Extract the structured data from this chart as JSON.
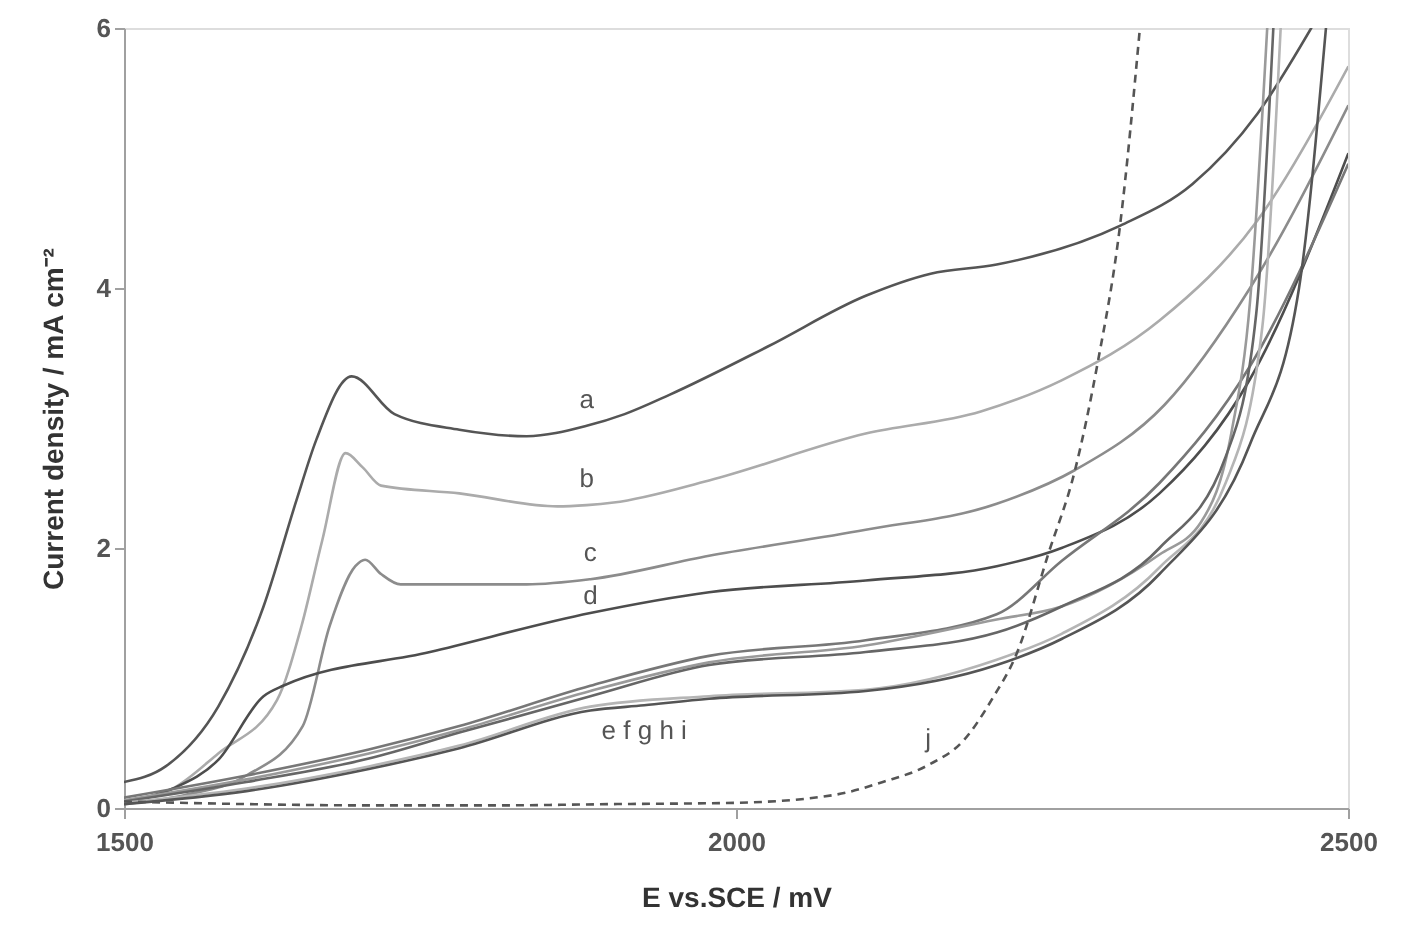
{
  "chart_data": {
    "type": "line",
    "xlabel": "E vs.SCE / mV",
    "ylabel": "Current density / mA cm⁻²",
    "xlim": [
      1500,
      2500
    ],
    "ylim": [
      0,
      6
    ],
    "xticks": [
      1500,
      2000,
      2500
    ],
    "yticks": [
      0,
      2,
      4,
      6
    ],
    "grid": false,
    "line_style": "solid",
    "series": [
      {
        "color": "#555555",
        "x": [
          1500,
          1534,
          1577,
          1614,
          1641,
          1657,
          1686,
          1721,
          1774,
          1829,
          1878,
          1909,
          1946,
          2026,
          2106,
          2159,
          2213,
          2314,
          2373,
          2426,
          2470
        ],
        "values": [
          0.2,
          0.32,
          0.78,
          1.55,
          2.37,
          2.83,
          3.32,
          3.03,
          2.91,
          2.86,
          2.94,
          3.03,
          3.18,
          3.55,
          3.94,
          4.11,
          4.18,
          4.48,
          4.8,
          5.34,
          6.0
        ]
      },
      {
        "color": "#ababab",
        "x": [
          1500,
          1540,
          1577,
          1625,
          1645,
          1662,
          1681,
          1695,
          1710,
          1774,
          1854,
          1878,
          1900,
          1978,
          2106,
          2200,
          2266,
          2346,
          2426,
          2500
        ],
        "values": [
          0.05,
          0.15,
          0.42,
          0.83,
          1.4,
          2.06,
          2.73,
          2.62,
          2.48,
          2.42,
          2.32,
          2.33,
          2.35,
          2.52,
          2.88,
          3.05,
          3.29,
          3.75,
          4.52,
          5.7
        ]
      },
      {
        "color": "#8c8c8c",
        "x": [
          1500,
          1550,
          1600,
          1646,
          1668,
          1689,
          1697,
          1710,
          1726,
          1829,
          1881,
          1978,
          2106,
          2213,
          2277,
          2350,
          2420,
          2500
        ],
        "values": [
          0.03,
          0.1,
          0.25,
          0.63,
          1.4,
          1.86,
          1.91,
          1.8,
          1.72,
          1.72,
          1.76,
          1.94,
          2.14,
          2.34,
          2.6,
          3.1,
          4.0,
          5.4
        ]
      },
      {
        "color": "#4d4d4d",
        "x": [
          1500,
          1540,
          1577,
          1614,
          1630,
          1750,
          1881,
          1978,
          2106,
          2213,
          2266,
          2346,
          2420,
          2500
        ],
        "values": [
          0.05,
          0.15,
          0.37,
          0.86,
          0.94,
          1.2,
          1.5,
          1.66,
          1.75,
          1.86,
          2.0,
          2.42,
          3.3,
          5.03
        ]
      },
      {
        "color": "#777777",
        "x": [
          1500,
          1600,
          1700,
          1774,
          1881,
          1978,
          2106,
          2213,
          2266,
          2346,
          2420,
          2500
        ],
        "values": [
          0.08,
          0.25,
          0.45,
          0.63,
          0.94,
          1.17,
          1.29,
          1.49,
          1.9,
          2.5,
          3.4,
          4.95
        ]
      },
      {
        "color": "#9a9a9a",
        "x": [
          1500,
          1600,
          1700,
          1774,
          1881,
          1978,
          2106,
          2213,
          2266,
          2346,
          2380,
          2405,
          2420,
          2434
        ],
        "values": [
          0.06,
          0.22,
          0.42,
          0.6,
          0.9,
          1.12,
          1.25,
          1.45,
          1.55,
          1.95,
          2.2,
          2.9,
          3.9,
          6.0
        ]
      },
      {
        "color": "#666666",
        "x": [
          1500,
          1600,
          1700,
          1774,
          1881,
          1978,
          2106,
          2213,
          2266,
          2346,
          2400,
          2425,
          2439
        ],
        "values": [
          0.05,
          0.2,
          0.38,
          0.58,
          0.86,
          1.1,
          1.2,
          1.35,
          1.55,
          2.0,
          2.7,
          3.8,
          6.0
        ]
      },
      {
        "color": "#b5b5b5",
        "x": [
          1500,
          1600,
          1700,
          1774,
          1881,
          1978,
          2106,
          2213,
          2266,
          2346,
          2400,
          2430,
          2445
        ],
        "values": [
          0.04,
          0.15,
          0.32,
          0.48,
          0.78,
          0.86,
          0.91,
          1.14,
          1.34,
          1.85,
          2.5,
          3.7,
          6.0
        ]
      },
      {
        "color": "#555555",
        "x": [
          1500,
          1600,
          1700,
          1774,
          1881,
          1925,
          1978,
          2106,
          2213,
          2266,
          2346,
          2420,
          2460,
          2482
        ],
        "values": [
          0.03,
          0.13,
          0.3,
          0.46,
          0.75,
          0.79,
          0.84,
          0.9,
          1.1,
          1.3,
          1.8,
          2.8,
          4.0,
          6.0
        ]
      },
      {
        "color": "#555555",
        "line_style": "dashed",
        "x": [
          1500,
          1600,
          1700,
          1800,
          1900,
          2000,
          2080,
          2120,
          2157,
          2186,
          2210,
          2229,
          2255,
          2277,
          2295,
          2314,
          2330
        ],
        "values": [
          0.05,
          0.03,
          0.02,
          0.02,
          0.03,
          0.04,
          0.1,
          0.2,
          0.33,
          0.52,
          0.85,
          1.18,
          1.95,
          2.6,
          3.4,
          4.5,
          6.0
        ]
      }
    ],
    "annotations": [
      {
        "text": "a",
        "x": 1878,
        "y": 2.94
      },
      {
        "text": "b",
        "x": 1878,
        "y": 2.33
      },
      {
        "text": "c",
        "x": 1881,
        "y": 1.76
      },
      {
        "text": "d",
        "x": 1881,
        "y": 1.5
      },
      {
        "text": "e f g h i",
        "x": 1925,
        "y": 0.79
      },
      {
        "text": "j",
        "x": 2157,
        "y": 0.33
      }
    ]
  }
}
